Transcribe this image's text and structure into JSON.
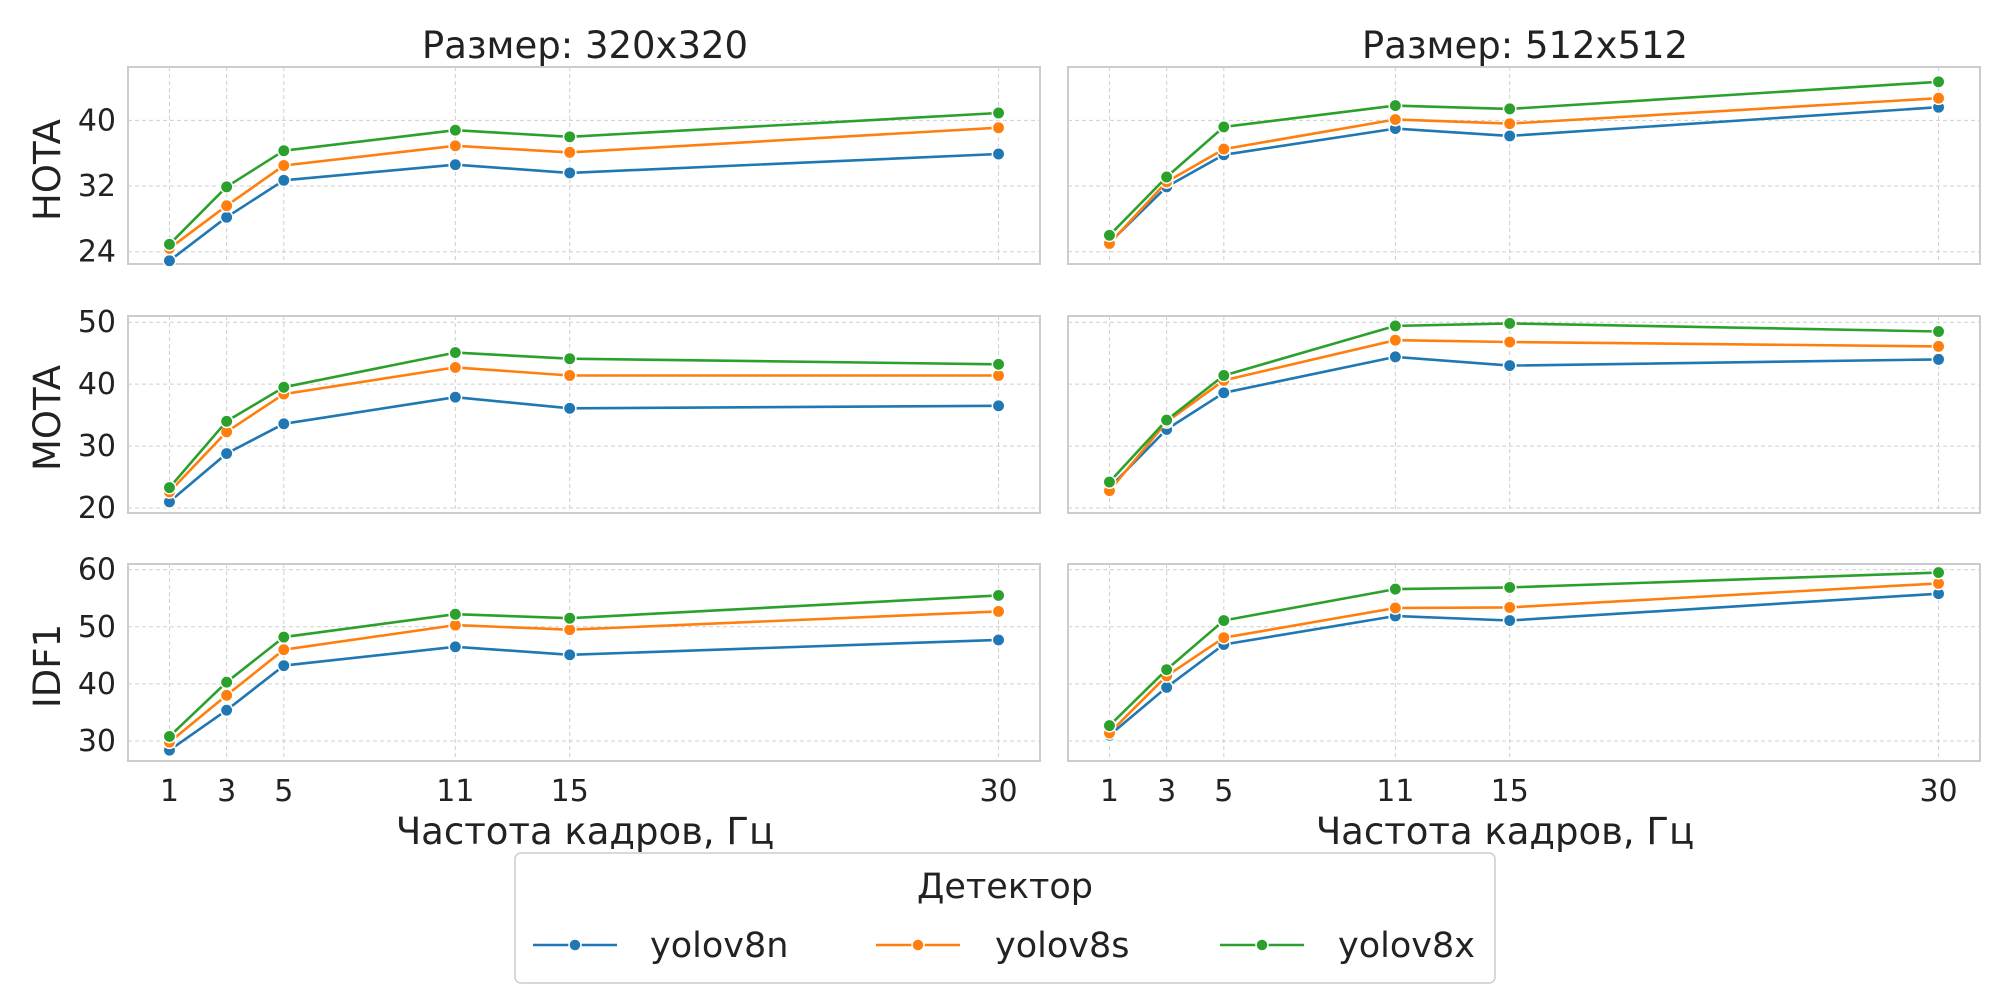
{
  "chart_data": {
    "type": "line",
    "x": [
      1,
      3,
      5,
      11,
      15,
      30
    ],
    "xlabel": "Частота кадров, Гц",
    "x_ticks": [
      "1",
      "3",
      "5",
      "11",
      "15",
      "30"
    ],
    "legend": {
      "title": "Детектор",
      "placement": "bottom-center",
      "entries": [
        "yolov8n",
        "yolov8s",
        "yolov8x"
      ]
    },
    "colors": {
      "yolov8n": "#1f77b4",
      "yolov8s": "#ff7f0e",
      "yolov8x": "#2ca02c"
    },
    "grid": true,
    "columns": [
      {
        "title": "Размер: 320x320"
      },
      {
        "title": "Размер: 512x512"
      }
    ],
    "rows": [
      {
        "ylabel": "HOTA",
        "ylim": [
          22.5,
          46.5
        ],
        "yticks": [
          24,
          32,
          40
        ],
        "ytick_labels": [
          "24",
          "32",
          "40"
        ]
      },
      {
        "ylabel": "MOTA",
        "ylim": [
          19.2,
          51
        ],
        "yticks": [
          20,
          30,
          40,
          50
        ],
        "ytick_labels": [
          "20",
          "30",
          "40",
          "50"
        ]
      },
      {
        "ylabel": "IDF1",
        "ylim": [
          26.5,
          61
        ],
        "yticks": [
          30,
          40,
          50,
          60
        ],
        "ytick_labels": [
          "30",
          "40",
          "50",
          "60"
        ]
      }
    ],
    "panels": [
      {
        "row": 0,
        "col": 0,
        "series": [
          {
            "name": "yolov8n",
            "values": [
              22.9,
              28.2,
              32.7,
              34.6,
              33.6,
              35.9
            ]
          },
          {
            "name": "yolov8s",
            "values": [
              24.4,
              29.6,
              34.5,
              36.9,
              36.1,
              39.1
            ]
          },
          {
            "name": "yolov8x",
            "values": [
              24.9,
              31.9,
              36.3,
              38.8,
              38.0,
              40.9
            ]
          }
        ]
      },
      {
        "row": 0,
        "col": 1,
        "series": [
          {
            "name": "yolov8n",
            "values": [
              25.1,
              31.9,
              35.8,
              39.0,
              38.1,
              41.6
            ]
          },
          {
            "name": "yolov8s",
            "values": [
              25.0,
              32.5,
              36.5,
              40.1,
              39.6,
              42.7
            ]
          },
          {
            "name": "yolov8x",
            "values": [
              26.0,
              33.1,
              39.2,
              41.8,
              41.4,
              44.7
            ]
          }
        ]
      },
      {
        "row": 1,
        "col": 0,
        "series": [
          {
            "name": "yolov8n",
            "values": [
              21.0,
              28.8,
              33.6,
              37.9,
              36.1,
              36.5
            ]
          },
          {
            "name": "yolov8s",
            "values": [
              22.6,
              32.3,
              38.4,
              42.7,
              41.4,
              41.4
            ]
          },
          {
            "name": "yolov8x",
            "values": [
              23.3,
              34.0,
              39.5,
              45.1,
              44.1,
              43.2
            ]
          }
        ]
      },
      {
        "row": 1,
        "col": 1,
        "series": [
          {
            "name": "yolov8n",
            "values": [
              23.3,
              32.7,
              38.6,
              44.4,
              43.0,
              44.0
            ]
          },
          {
            "name": "yolov8s",
            "values": [
              22.8,
              33.9,
              40.6,
              47.1,
              46.8,
              46.1
            ]
          },
          {
            "name": "yolov8x",
            "values": [
              24.2,
              34.2,
              41.4,
              49.4,
              49.8,
              48.5
            ]
          }
        ]
      },
      {
        "row": 2,
        "col": 0,
        "series": [
          {
            "name": "yolov8n",
            "values": [
              28.4,
              35.4,
              43.2,
              46.5,
              45.1,
              47.7
            ]
          },
          {
            "name": "yolov8s",
            "values": [
              29.8,
              38.0,
              46.0,
              50.3,
              49.5,
              52.7
            ]
          },
          {
            "name": "yolov8x",
            "values": [
              30.8,
              40.3,
              48.2,
              52.2,
              51.5,
              55.5
            ]
          }
        ]
      },
      {
        "row": 2,
        "col": 1,
        "series": [
          {
            "name": "yolov8n",
            "values": [
              31.0,
              39.4,
              46.9,
              51.9,
              51.1,
              55.8
            ]
          },
          {
            "name": "yolov8s",
            "values": [
              31.4,
              41.4,
              48.1,
              53.3,
              53.4,
              57.6
            ]
          },
          {
            "name": "yolov8x",
            "values": [
              32.7,
              42.5,
              51.1,
              56.6,
              56.9,
              59.5
            ]
          }
        ]
      }
    ]
  }
}
